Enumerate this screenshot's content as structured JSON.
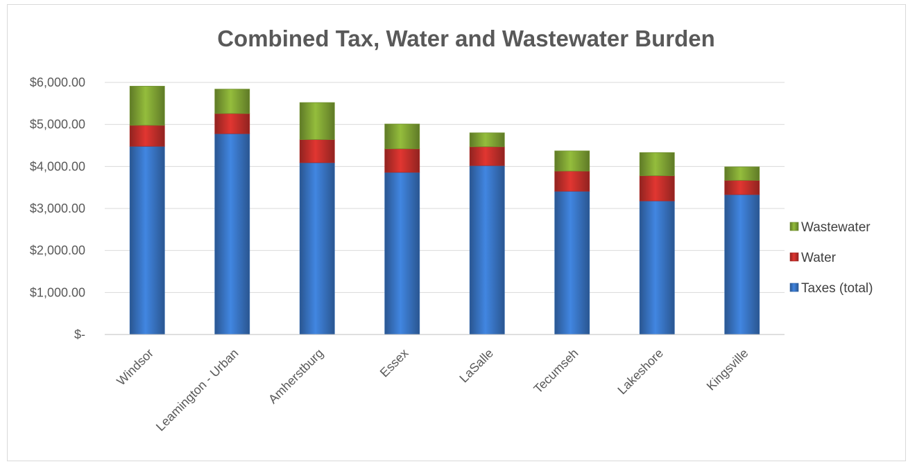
{
  "chart_data": {
    "type": "bar",
    "stacked": true,
    "title": "Combined Tax, Water and Wastewater Burden",
    "categories": [
      "Windsor",
      "Leamington - Urban",
      "Amherstburg",
      "Essex",
      "LaSalle",
      "Tecumseh",
      "Lakeshore",
      "Kingsville"
    ],
    "series": [
      {
        "name": "Taxes (total)",
        "color": "#3a78c9",
        "values": [
          4480,
          4780,
          4090,
          3860,
          4020,
          3410,
          3180,
          3330
        ]
      },
      {
        "name": "Water",
        "color": "#c9302c",
        "values": [
          500,
          480,
          550,
          560,
          450,
          480,
          600,
          340
        ]
      },
      {
        "name": "Wastewater",
        "color": "#84a936",
        "values": [
          930,
          580,
          880,
          590,
          330,
          480,
          550,
          320
        ]
      }
    ],
    "y_ticks": [
      "$-",
      "$1,000.00",
      "$2,000.00",
      "$3,000.00",
      "$4,000.00",
      "$5,000.00",
      "$6,000.00"
    ],
    "ylim": [
      0,
      6000
    ],
    "grid": true,
    "legend_position": "right",
    "legend_order": [
      "Wastewater",
      "Water",
      "Taxes (total)"
    ],
    "xlabel": "",
    "ylabel": ""
  }
}
